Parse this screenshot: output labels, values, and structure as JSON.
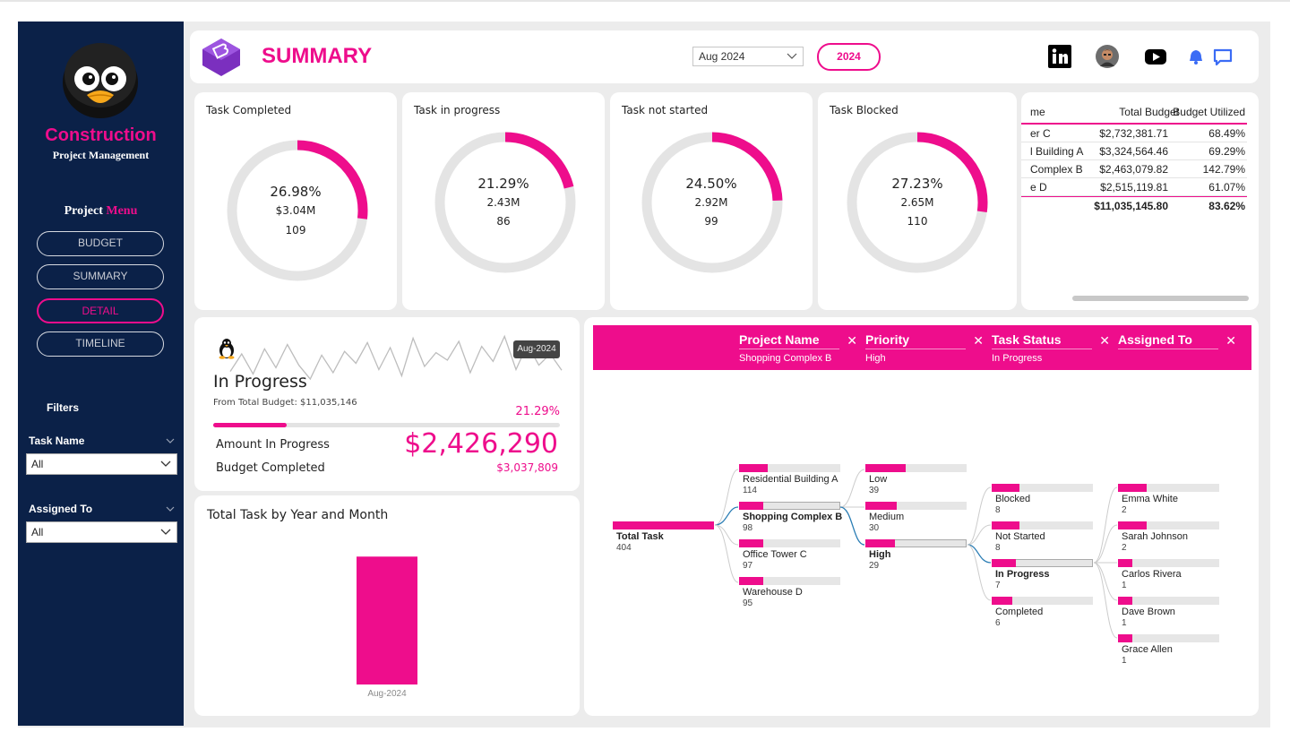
{
  "sidebar": {
    "brand": "Construction",
    "brand_sub": "Project Management",
    "menu_title_1": "Project",
    "menu_title_2": "Menu",
    "menu": [
      "BUDGET",
      "SUMMARY",
      "DETAIL",
      "TIMELINE"
    ],
    "filters_title": "Filters",
    "filters": [
      {
        "label": "Task Name",
        "value": "All"
      },
      {
        "label": "Assigned To",
        "value": "All"
      }
    ]
  },
  "header": {
    "title": "SUMMARY",
    "date_value": "Aug 2024",
    "year": "2024",
    "icons": [
      "linkedin-icon",
      "profile-avatar",
      "youtube-icon",
      "bell-icon",
      "chat-icon"
    ]
  },
  "colors": {
    "accent": "#ee0d8c",
    "sidebar": "#0b2148",
    "track": "#e4e4e4",
    "icon_blue": "#3b6cf5"
  },
  "kpis": [
    {
      "title": "Task Completed",
      "pct": "26.98%",
      "pct_value": 26.98,
      "amount": "$3.04M",
      "count": "109"
    },
    {
      "title": "Task in progress",
      "pct": "21.29%",
      "pct_value": 21.29,
      "amount": "2.43M",
      "count": "86"
    },
    {
      "title": "Task not started",
      "pct": "24.50%",
      "pct_value": 24.5,
      "amount": "2.92M",
      "count": "99"
    },
    {
      "title": "Task Blocked",
      "pct": "27.23%",
      "pct_value": 27.23,
      "amount": "2.65M",
      "count": "110"
    }
  ],
  "table": {
    "headers": [
      "me",
      "Total Budget",
      "Budget Utilized"
    ],
    "rows": [
      [
        "er C",
        "$2,732,381.71",
        "68.49%"
      ],
      [
        "l Building A",
        "$3,324,564.46",
        "69.29%"
      ],
      [
        "Complex B",
        "$2,463,079.82",
        "142.79%"
      ],
      [
        "e D",
        "$2,515,119.81",
        "61.07%"
      ]
    ],
    "total": [
      "$11,035,145.80",
      "83.62%"
    ]
  },
  "progress": {
    "title": "In Progress",
    "subtitle": "From Total Budget: $11,035,146",
    "pct_label": "21.29%",
    "pct_value": 21.29,
    "tooltip": "Aug-2024",
    "amount_label": "Amount In Progress",
    "amount_value": "$2,426,290",
    "budget_label": "Budget Completed",
    "budget_value": "$3,037,809",
    "sparkline": [
      42,
      70,
      38,
      78,
      48,
      85,
      52,
      30,
      68,
      40,
      74,
      55,
      88,
      45,
      80,
      35,
      95,
      50,
      72,
      60,
      90,
      40,
      82,
      58,
      98,
      45,
      85,
      52,
      70,
      44
    ]
  },
  "chart_data": {
    "type": "bar",
    "title": "Total Task by Year and Month",
    "categories": [
      "Aug-2024"
    ],
    "values": [
      86
    ],
    "ylim": [
      0,
      100
    ]
  },
  "tree": {
    "levels": [
      {
        "name": "Project Name",
        "value": "Shopping Complex B"
      },
      {
        "name": "Priority",
        "value": "High"
      },
      {
        "name": "Task Status",
        "value": "In Progress"
      },
      {
        "name": "Assigned To",
        "value": ""
      }
    ],
    "root": {
      "label": "Total Task",
      "value": 404
    },
    "columns": [
      [
        {
          "label": "Residential Building A",
          "value": 114,
          "selected": false
        },
        {
          "label": "Shopping Complex B",
          "value": 98,
          "selected": true
        },
        {
          "label": "Office Tower C",
          "value": 97,
          "selected": false
        },
        {
          "label": "Warehouse D",
          "value": 95,
          "selected": false
        }
      ],
      [
        {
          "label": "Low",
          "value": 39,
          "selected": false
        },
        {
          "label": "Medium",
          "value": 30,
          "selected": false
        },
        {
          "label": "High",
          "value": 29,
          "selected": true
        }
      ],
      [
        {
          "label": "Blocked",
          "value": 8,
          "selected": false
        },
        {
          "label": "Not Started",
          "value": 8,
          "selected": false
        },
        {
          "label": "In Progress",
          "value": 7,
          "selected": true
        },
        {
          "label": "Completed",
          "value": 6,
          "selected": false
        }
      ],
      [
        {
          "label": "Emma White",
          "value": 2,
          "selected": false
        },
        {
          "label": "Sarah Johnson",
          "value": 2,
          "selected": false
        },
        {
          "label": "Carlos Rivera",
          "value": 1,
          "selected": false
        },
        {
          "label": "Dave Brown",
          "value": 1,
          "selected": false
        },
        {
          "label": "Grace Allen",
          "value": 1,
          "selected": false
        }
      ]
    ]
  }
}
